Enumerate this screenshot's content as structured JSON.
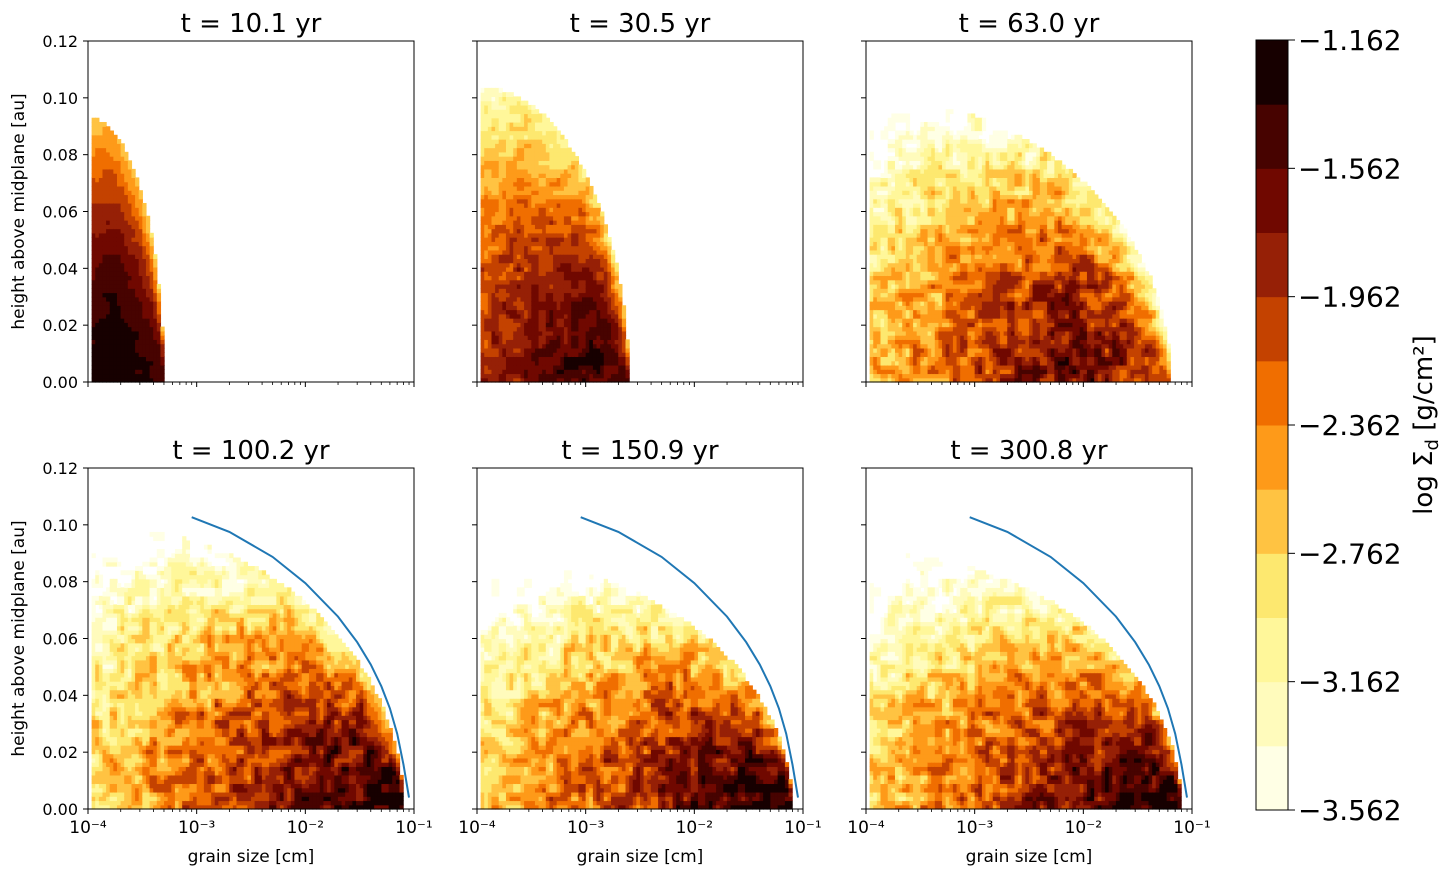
{
  "chart_data": [
    {
      "type": "heatmap",
      "title": "t = 10.1 yr",
      "xlabel": "",
      "ylabel": "height above midplane [au]",
      "xscale": "log",
      "xlim": [
        0.0001,
        0.1
      ],
      "ylim": [
        0,
        0.12
      ],
      "yticks": [
        "0.00",
        "0.02",
        "0.04",
        "0.06",
        "0.08",
        "0.10",
        "0.12"
      ],
      "xticks": [],
      "distribution": {
        "peak_size_cm": 0.00018,
        "peak_log_sigma": -1.2,
        "max_size_cm": 0.0005,
        "max_height_au": 0.093,
        "noise": 0.05
      },
      "analytic_curve": false
    },
    {
      "type": "heatmap",
      "title": "t = 30.5 yr",
      "xlabel": "",
      "ylabel": "",
      "xscale": "log",
      "xlim": [
        0.0001,
        0.1
      ],
      "ylim": [
        0,
        0.12
      ],
      "yticks": [],
      "xticks": [],
      "distribution": {
        "peak_size_cm": 0.0011,
        "peak_log_sigma": -1.4,
        "max_size_cm": 0.0025,
        "max_height_au": 0.104,
        "noise": 0.18
      },
      "analytic_curve": false
    },
    {
      "type": "heatmap",
      "title": "t = 63.0 yr",
      "xlabel": "",
      "ylabel": "",
      "xscale": "log",
      "xlim": [
        0.0001,
        0.1
      ],
      "ylim": [
        0,
        0.12
      ],
      "yticks": [],
      "xticks": [],
      "distribution": {
        "peak_size_cm": 0.008,
        "peak_log_sigma": -1.6,
        "max_size_cm": 0.065,
        "max_height_au": 0.1,
        "noise": 0.28
      },
      "analytic_curve": false
    },
    {
      "type": "heatmap",
      "title": "t = 100.2 yr",
      "xlabel": "grain size [cm]",
      "ylabel": "height above midplane [au]",
      "xscale": "log",
      "xlim": [
        0.0001,
        0.1
      ],
      "ylim": [
        0,
        0.12
      ],
      "yticks": [
        "0.00",
        "0.02",
        "0.04",
        "0.06",
        "0.08",
        "0.10",
        "0.12"
      ],
      "xticks": [
        "10⁻⁴",
        "10⁻³",
        "10⁻²",
        "10⁻¹"
      ],
      "distribution": {
        "peak_size_cm": 0.07,
        "peak_log_sigma": -1.2,
        "max_size_cm": 0.08,
        "max_height_au": 0.1,
        "noise": 0.3
      },
      "analytic_curve": true
    },
    {
      "type": "heatmap",
      "title": "t = 150.9 yr",
      "xlabel": "grain size [cm]",
      "ylabel": "",
      "xscale": "log",
      "xlim": [
        0.0001,
        0.1
      ],
      "ylim": [
        0,
        0.12
      ],
      "yticks": [],
      "xticks": [
        "10⁻⁴",
        "10⁻³",
        "10⁻²",
        "10⁻¹"
      ],
      "distribution": {
        "peak_size_cm": 0.07,
        "peak_log_sigma": -1.2,
        "max_size_cm": 0.08,
        "max_height_au": 0.088,
        "noise": 0.3
      },
      "analytic_curve": true
    },
    {
      "type": "heatmap",
      "title": "t = 300.8 yr",
      "xlabel": "grain size [cm]",
      "ylabel": "",
      "xscale": "log",
      "xlim": [
        0.0001,
        0.1
      ],
      "ylim": [
        0,
        0.12
      ],
      "yticks": [],
      "xticks": [
        "10⁻⁴",
        "10⁻³",
        "10⁻²",
        "10⁻¹"
      ],
      "distribution": {
        "peak_size_cm": 0.07,
        "peak_log_sigma": -1.2,
        "max_size_cm": 0.08,
        "max_height_au": 0.09,
        "noise": 0.3
      },
      "analytic_curve": true
    }
  ],
  "analytic_curve": {
    "color": "#1f77b4",
    "points": [
      [
        0.0009,
        0.1027
      ],
      [
        0.002,
        0.0975
      ],
      [
        0.005,
        0.0887
      ],
      [
        0.01,
        0.0795
      ],
      [
        0.02,
        0.0677
      ],
      [
        0.03,
        0.0587
      ],
      [
        0.04,
        0.0508
      ],
      [
        0.05,
        0.0432
      ],
      [
        0.06,
        0.0354
      ],
      [
        0.07,
        0.0265
      ],
      [
        0.08,
        0.0156
      ],
      [
        0.09,
        0.004
      ]
    ]
  },
  "colorbar": {
    "label": "log Σ",
    "label_sub": "d",
    "label_unit": " [g/cm²]",
    "range": [
      -3.562,
      -1.162
    ],
    "tick_values": [
      -3.562,
      -3.162,
      -2.762,
      -2.362,
      -1.962,
      -1.562,
      -1.162
    ],
    "tick_labels": [
      "−3.562",
      "−3.162",
      "−2.762",
      "−2.362",
      "−1.962",
      "−1.562",
      "−1.162"
    ],
    "levels": [
      "#ffffe5",
      "#fffbbc",
      "#fff79a",
      "#fde86f",
      "#ffc342",
      "#fe9a19",
      "#f06e00",
      "#c44200",
      "#962006",
      "#700800",
      "#470300",
      "#170000"
    ]
  }
}
